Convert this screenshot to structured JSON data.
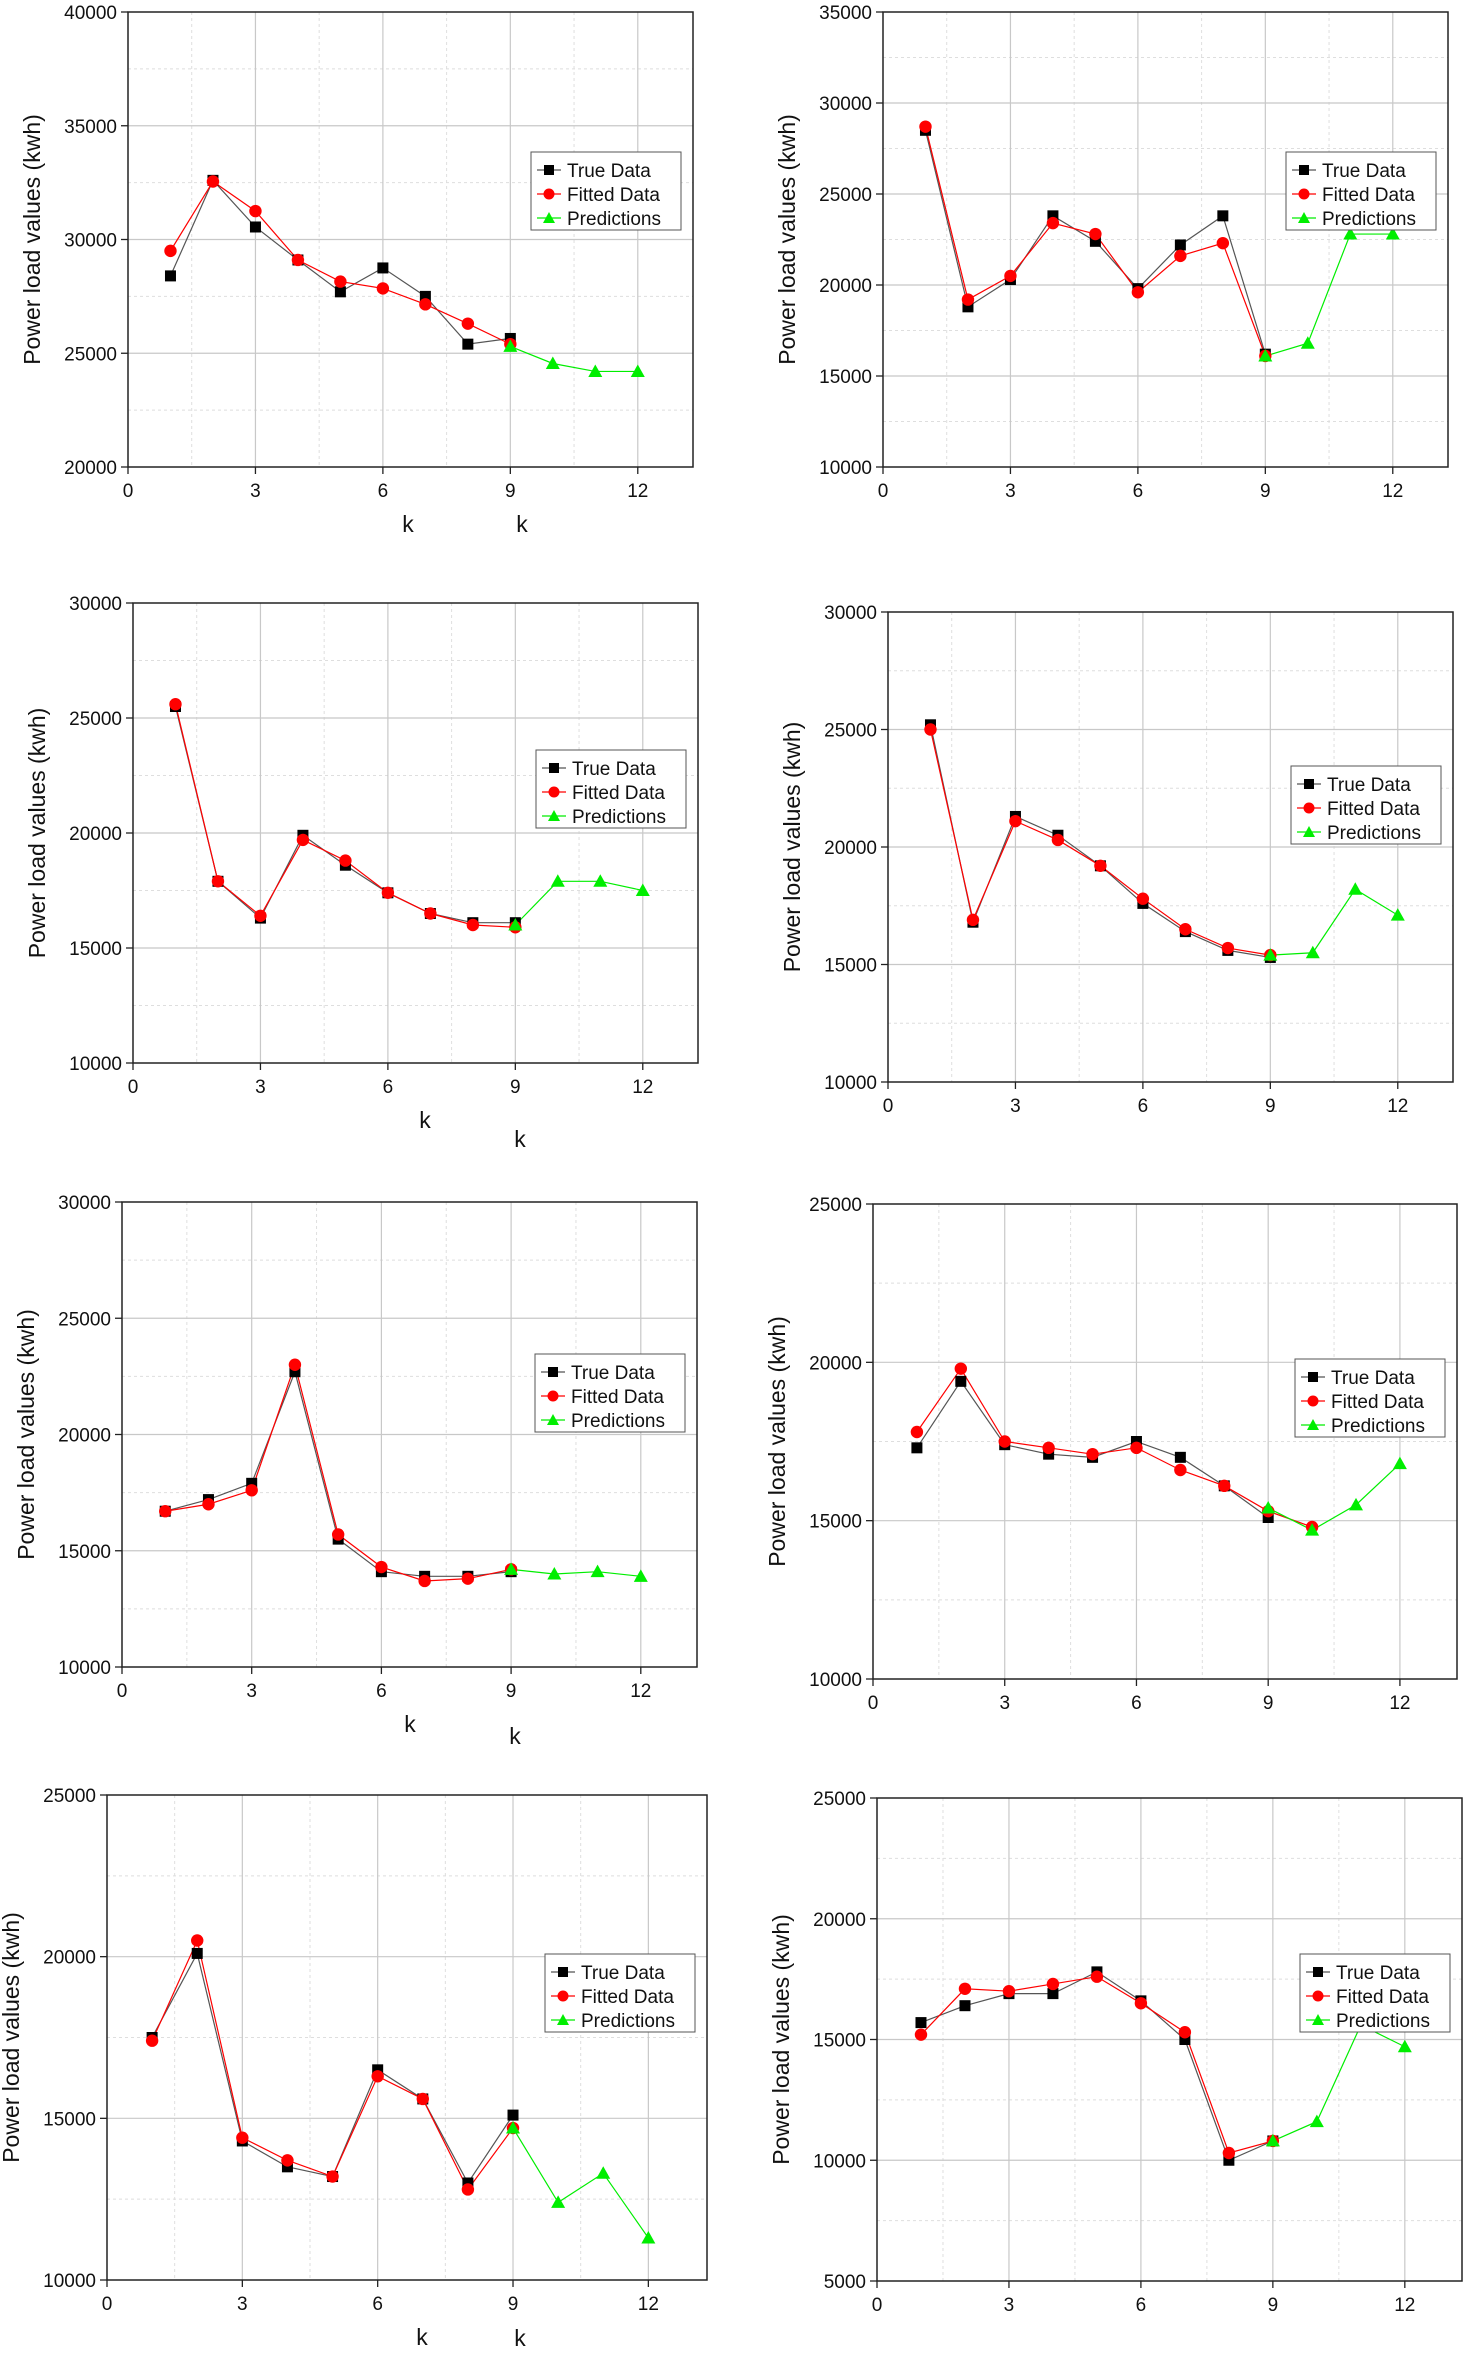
{
  "colors": {
    "true": "#000000",
    "fitted": "#ff0000",
    "pred": "#00ee00",
    "major_grid": "#c8c8c8",
    "minor_grid": "#dedede"
  },
  "chart_data": [
    {
      "type": "line",
      "xlabel": "k",
      "ylabel": "Power load values (kwh)",
      "xlim": [
        0,
        13.3
      ],
      "ylim": [
        20000,
        40000
      ],
      "xticks": [
        0,
        3,
        6,
        9,
        12
      ],
      "yticks": [
        20000,
        25000,
        30000,
        35000,
        40000
      ],
      "grid": true,
      "legend": "top-right",
      "series": [
        {
          "name": "True Data",
          "x": [
            1,
            2,
            3,
            4,
            5,
            6,
            7,
            8,
            9
          ],
          "y": [
            28400,
            32600,
            30550,
            29100,
            27700,
            28750,
            27500,
            25400,
            25650
          ]
        },
        {
          "name": "Fitted Data",
          "x": [
            1,
            2,
            3,
            4,
            5,
            6,
            7,
            8,
            9
          ],
          "y": [
            29500,
            32550,
            31250,
            29100,
            28150,
            27850,
            27150,
            26300,
            25400
          ]
        },
        {
          "name": "Predictions",
          "x": [
            9,
            10,
            11,
            12
          ],
          "y": [
            25300,
            24550,
            24200,
            24200
          ]
        }
      ]
    },
    {
      "type": "line",
      "xlabel": "k",
      "ylabel": "Power load values (kwh)",
      "xlim": [
        0,
        13.3
      ],
      "ylim": [
        10000,
        35000
      ],
      "xticks": [
        0,
        3,
        6,
        9,
        12
      ],
      "yticks": [
        10000,
        15000,
        20000,
        25000,
        30000,
        35000
      ],
      "grid": true,
      "legend": "top-right",
      "series": [
        {
          "name": "True Data",
          "x": [
            1,
            2,
            3,
            4,
            5,
            6,
            7,
            8,
            9
          ],
          "y": [
            28500,
            18800,
            20300,
            23800,
            22400,
            19800,
            22200,
            23800,
            16200
          ]
        },
        {
          "name": "Fitted Data",
          "x": [
            1,
            2,
            3,
            4,
            5,
            6,
            7,
            8,
            9
          ],
          "y": [
            28700,
            19200,
            20500,
            23400,
            22800,
            19600,
            21600,
            22300,
            16100
          ]
        },
        {
          "name": "Predictions",
          "x": [
            9,
            10,
            11,
            12
          ],
          "y": [
            16100,
            16800,
            22800,
            22800
          ]
        }
      ]
    },
    {
      "type": "line",
      "xlabel": "k",
      "ylabel": "Power load values (kwh)",
      "xlim": [
        0,
        13.3
      ],
      "ylim": [
        10000,
        30000
      ],
      "xticks": [
        0,
        3,
        6,
        9,
        12
      ],
      "yticks": [
        10000,
        15000,
        20000,
        25000,
        30000
      ],
      "grid": true,
      "legend": "top-right",
      "series": [
        {
          "name": "True Data",
          "x": [
            1,
            2,
            3,
            4,
            5,
            6,
            7,
            8,
            9
          ],
          "y": [
            25500,
            17900,
            16300,
            19900,
            18600,
            17400,
            16500,
            16100,
            16100
          ]
        },
        {
          "name": "Fitted Data",
          "x": [
            1,
            2,
            3,
            4,
            5,
            6,
            7,
            8,
            9
          ],
          "y": [
            25600,
            17900,
            16400,
            19700,
            18800,
            17400,
            16500,
            16000,
            15900
          ]
        },
        {
          "name": "Predictions",
          "x": [
            9,
            10,
            11,
            12
          ],
          "y": [
            16000,
            17900,
            17900,
            17500
          ]
        }
      ]
    },
    {
      "type": "line",
      "xlabel": "k",
      "ylabel": "Power load values (kwh)",
      "xlim": [
        0,
        13.3
      ],
      "ylim": [
        10000,
        30000
      ],
      "xticks": [
        0,
        3,
        6,
        9,
        12
      ],
      "yticks": [
        10000,
        15000,
        20000,
        25000,
        30000
      ],
      "grid": true,
      "legend": "top-right",
      "series": [
        {
          "name": "True Data",
          "x": [
            1,
            2,
            3,
            4,
            5,
            6,
            7,
            8,
            9
          ],
          "y": [
            25200,
            16800,
            21300,
            20500,
            19200,
            17600,
            16400,
            15600,
            15300
          ]
        },
        {
          "name": "Fitted Data",
          "x": [
            1,
            2,
            3,
            4,
            5,
            6,
            7,
            8,
            9
          ],
          "y": [
            25000,
            16900,
            21100,
            20300,
            19200,
            17800,
            16500,
            15700,
            15400
          ]
        },
        {
          "name": "Predictions",
          "x": [
            9,
            10,
            11,
            12
          ],
          "y": [
            15400,
            15500,
            18200,
            17100
          ]
        }
      ]
    },
    {
      "type": "line",
      "xlabel": "k",
      "ylabel": "Power load values (kwh)",
      "xlim": [
        0,
        13.3
      ],
      "ylim": [
        10000,
        30000
      ],
      "xticks": [
        0,
        3,
        6,
        9,
        12
      ],
      "yticks": [
        10000,
        15000,
        20000,
        25000,
        30000
      ],
      "grid": true,
      "legend": "top-right",
      "series": [
        {
          "name": "True Data",
          "x": [
            1,
            2,
            3,
            4,
            5,
            6,
            7,
            8,
            9
          ],
          "y": [
            16700,
            17200,
            17900,
            22700,
            15500,
            14100,
            13900,
            13900,
            14100
          ]
        },
        {
          "name": "Fitted Data",
          "x": [
            1,
            2,
            3,
            4,
            5,
            6,
            7,
            8,
            9
          ],
          "y": [
            16700,
            17000,
            17600,
            23000,
            15700,
            14300,
            13700,
            13800,
            14200
          ]
        },
        {
          "name": "Predictions",
          "x": [
            9,
            10,
            11,
            12
          ],
          "y": [
            14200,
            14000,
            14100,
            13900
          ]
        }
      ]
    },
    {
      "type": "line",
      "xlabel": "k",
      "ylabel": "Power load values (kwh)",
      "xlim": [
        0,
        13.3
      ],
      "ylim": [
        10000,
        25000
      ],
      "xticks": [
        0,
        3,
        6,
        9,
        12
      ],
      "yticks": [
        10000,
        15000,
        20000,
        25000
      ],
      "grid": true,
      "legend": "top-right",
      "series": [
        {
          "name": "True Data",
          "x": [
            1,
            2,
            3,
            4,
            5,
            6,
            7,
            8,
            9
          ],
          "y": [
            17300,
            19400,
            17400,
            17100,
            17000,
            17500,
            17000,
            16100,
            15100
          ]
        },
        {
          "name": "Fitted Data",
          "x": [
            1,
            2,
            3,
            4,
            5,
            6,
            7,
            8,
            9,
            10
          ],
          "y": [
            17800,
            19800,
            17500,
            17300,
            17100,
            17300,
            16600,
            16100,
            15300,
            14800
          ]
        },
        {
          "name": "Predictions",
          "x": [
            9,
            10,
            11,
            12
          ],
          "y": [
            15400,
            14700,
            15500,
            16800
          ]
        }
      ]
    },
    {
      "type": "line",
      "xlabel": "k",
      "ylabel": "Power load values (kwh)",
      "xlim": [
        0,
        13.3
      ],
      "ylim": [
        10000,
        25000
      ],
      "xticks": [
        0,
        3,
        6,
        9,
        12
      ],
      "yticks": [
        10000,
        15000,
        20000,
        25000
      ],
      "grid": true,
      "legend": "top-right",
      "series": [
        {
          "name": "True Data",
          "x": [
            1,
            2,
            3,
            4,
            5,
            6,
            7,
            8,
            9
          ],
          "y": [
            17500,
            20100,
            14300,
            13500,
            13200,
            16500,
            15600,
            13000,
            15100
          ]
        },
        {
          "name": "Fitted Data",
          "x": [
            1,
            2,
            3,
            4,
            5,
            6,
            7,
            8,
            9
          ],
          "y": [
            17400,
            20500,
            14400,
            13700,
            13200,
            16300,
            15600,
            12800,
            14700
          ]
        },
        {
          "name": "Predictions",
          "x": [
            9,
            10,
            11,
            12
          ],
          "y": [
            14700,
            12400,
            13300,
            11300
          ]
        }
      ]
    },
    {
      "type": "line",
      "xlabel": "k",
      "ylabel": "Power load values (kwh)",
      "xlim": [
        0,
        13.3
      ],
      "ylim": [
        5000,
        25000
      ],
      "xticks": [
        0,
        3,
        6,
        9,
        12
      ],
      "yticks": [
        5000,
        10000,
        15000,
        20000,
        25000
      ],
      "grid": true,
      "legend": "top-right",
      "series": [
        {
          "name": "True Data",
          "x": [
            1,
            2,
            3,
            4,
            5,
            6,
            7,
            8,
            9
          ],
          "y": [
            15700,
            16400,
            16900,
            16900,
            17800,
            16600,
            15000,
            10000,
            10800
          ]
        },
        {
          "name": "Fitted Data",
          "x": [
            1,
            2,
            3,
            4,
            5,
            6,
            7,
            8,
            9
          ],
          "y": [
            15200,
            17100,
            17000,
            17300,
            17600,
            16500,
            15300,
            10300,
            10800
          ]
        },
        {
          "name": "Predictions",
          "x": [
            9,
            10,
            11,
            12
          ],
          "y": [
            10800,
            11600,
            15600,
            14700
          ]
        }
      ]
    }
  ]
}
